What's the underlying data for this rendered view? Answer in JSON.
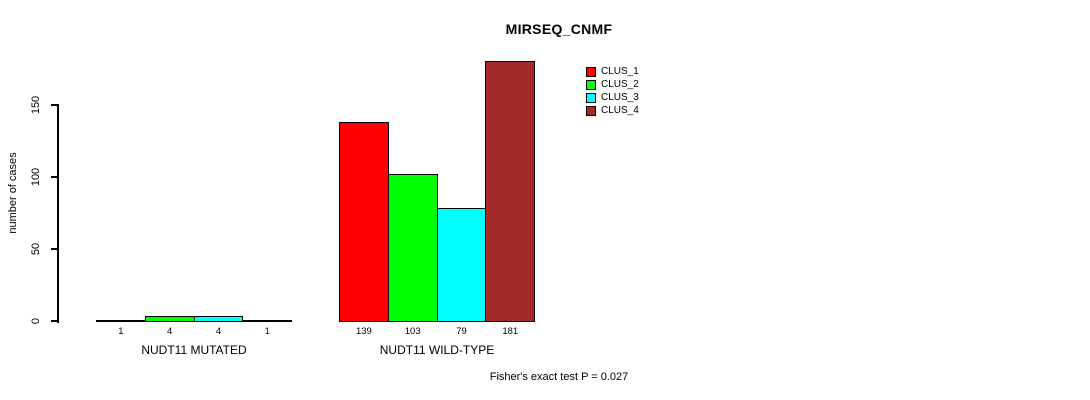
{
  "chart_data": {
    "type": "bar",
    "title": "MIRSEQ_CNMF",
    "ylabel": "number of cases",
    "xlabel": "",
    "ylim": [
      0,
      150
    ],
    "y_ticks": [
      0,
      50,
      100,
      150
    ],
    "grid": false,
    "legend_position": "top-right-inside",
    "categories": [
      "NUDT11 MUTATED",
      "NUDT11 WILD-TYPE"
    ],
    "series": [
      {
        "name": "CLUS_1",
        "color": "#FF0000",
        "values": [
          1,
          139
        ]
      },
      {
        "name": "CLUS_2",
        "color": "#00FF00",
        "values": [
          4,
          103
        ]
      },
      {
        "name": "CLUS_3",
        "color": "#00FFFF",
        "values": [
          4,
          79
        ]
      },
      {
        "name": "CLUS_4",
        "color": "#A52A2A",
        "values": [
          1,
          181
        ]
      }
    ],
    "bar_value_labels": [
      [
        1,
        4,
        4,
        1
      ],
      [
        139,
        103,
        79,
        181
      ]
    ],
    "annotation": "Fisher's exact test P = 0.027"
  }
}
